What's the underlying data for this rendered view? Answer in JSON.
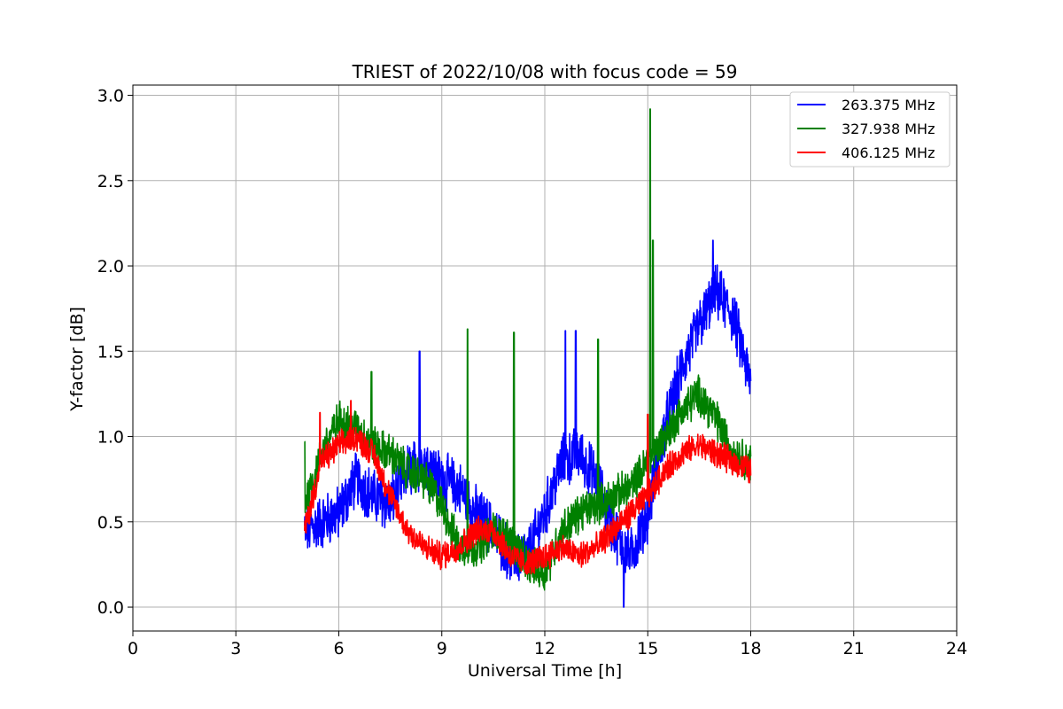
{
  "chart_data": {
    "type": "line",
    "title": "TRIEST of 2022/10/08 with focus code = 59",
    "xlabel": "Universal Time [h]",
    "ylabel": "Y-factor [dB]",
    "xlim": [
      0,
      24
    ],
    "ylim": [
      -0.14,
      3.06
    ],
    "xticks": [
      0,
      3,
      6,
      9,
      12,
      15,
      18,
      21,
      24
    ],
    "yticks": [
      0.0,
      0.5,
      1.0,
      1.5,
      2.0,
      2.5,
      3.0
    ],
    "xtick_labels": [
      "0",
      "3",
      "6",
      "9",
      "12",
      "15",
      "18",
      "21",
      "24"
    ],
    "ytick_labels": [
      "0.0",
      "0.5",
      "1.0",
      "1.5",
      "2.0",
      "2.5",
      "3.0"
    ],
    "grid": true,
    "legend_position": "top-right",
    "series": [
      {
        "name": "263.375 MHz",
        "color": "#0000ff",
        "noise": 0.14,
        "x": [
          5.0,
          5.5,
          6.0,
          6.5,
          7.0,
          7.5,
          8.0,
          8.5,
          9.0,
          9.5,
          10.0,
          10.5,
          11.0,
          11.5,
          12.0,
          12.5,
          13.0,
          13.5,
          14.0,
          14.5,
          15.0,
          15.5,
          16.0,
          16.5,
          17.0,
          17.5,
          18.0
        ],
        "y": [
          0.45,
          0.5,
          0.55,
          0.75,
          0.65,
          0.6,
          0.8,
          0.85,
          0.75,
          0.7,
          0.55,
          0.45,
          0.3,
          0.3,
          0.55,
          0.85,
          0.9,
          0.75,
          0.45,
          0.3,
          0.55,
          1.05,
          1.4,
          1.65,
          1.85,
          1.7,
          1.3
        ],
        "spikes": [
          [
            8.35,
            1.5
          ],
          [
            12.6,
            1.62
          ],
          [
            12.9,
            1.62
          ],
          [
            14.3,
            0.0
          ],
          [
            16.9,
            2.15
          ]
        ]
      },
      {
        "name": "327.938 MHz",
        "color": "#008000",
        "noise": 0.1,
        "x": [
          5.0,
          5.5,
          6.0,
          6.5,
          7.0,
          7.5,
          8.0,
          8.5,
          9.0,
          9.5,
          10.0,
          10.5,
          11.0,
          11.5,
          12.0,
          12.5,
          13.0,
          13.5,
          14.0,
          14.5,
          15.0,
          15.5,
          16.0,
          16.5,
          17.0,
          17.5,
          18.0
        ],
        "y": [
          0.6,
          0.9,
          1.1,
          1.05,
          0.95,
          0.9,
          0.8,
          0.75,
          0.6,
          0.35,
          0.35,
          0.45,
          0.4,
          0.25,
          0.2,
          0.45,
          0.55,
          0.6,
          0.65,
          0.7,
          0.85,
          1.0,
          1.15,
          1.25,
          1.1,
          0.9,
          0.85
        ],
        "spikes": [
          [
            5.0,
            0.97
          ],
          [
            6.95,
            1.38
          ],
          [
            9.75,
            1.63
          ],
          [
            11.1,
            1.61
          ],
          [
            13.55,
            1.57
          ],
          [
            15.07,
            2.92
          ],
          [
            15.15,
            2.15
          ]
        ]
      },
      {
        "name": "406.125 MHz",
        "color": "#ff0000",
        "noise": 0.07,
        "x": [
          5.0,
          5.5,
          6.0,
          6.5,
          7.0,
          7.5,
          8.0,
          8.5,
          9.0,
          9.5,
          10.0,
          10.5,
          11.0,
          11.5,
          12.0,
          12.5,
          13.0,
          13.5,
          14.0,
          14.5,
          15.0,
          15.5,
          16.0,
          16.5,
          17.0,
          17.5,
          18.0
        ],
        "y": [
          0.45,
          0.85,
          0.95,
          1.0,
          0.9,
          0.65,
          0.45,
          0.35,
          0.3,
          0.35,
          0.45,
          0.45,
          0.3,
          0.25,
          0.3,
          0.35,
          0.3,
          0.35,
          0.45,
          0.55,
          0.65,
          0.8,
          0.9,
          0.95,
          0.9,
          0.85,
          0.8
        ],
        "spikes": [
          [
            5.45,
            1.14
          ],
          [
            6.35,
            1.21
          ],
          [
            15.0,
            1.13
          ]
        ]
      }
    ]
  }
}
